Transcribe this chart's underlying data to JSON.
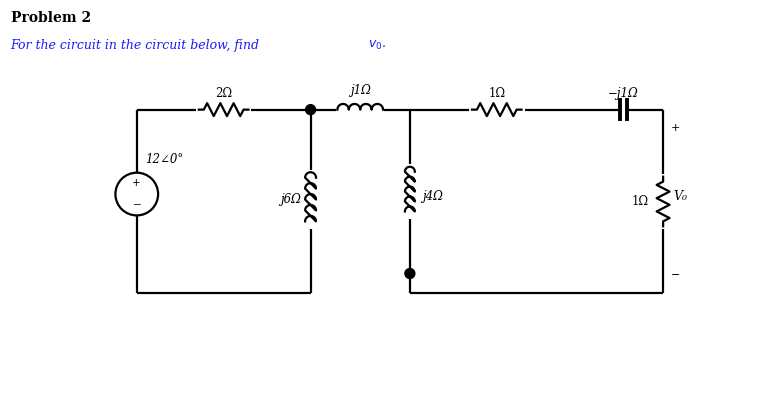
{
  "title": "Problem 2",
  "subtitle": "For the circuit in the circuit below, find $v_0$.",
  "title_color": "black",
  "subtitle_color": "#1a1aff",
  "bg_color": "white",
  "fig_width": 7.83,
  "fig_height": 4.04,
  "dpi": 100,
  "labels": {
    "source": "12∠0°",
    "R1": "2Ω",
    "L1": "j1Ω",
    "R2": "1Ω",
    "C1": "−j1Ω",
    "L2": "j6Ω",
    "L3": "j4Ω",
    "R3": "1Ω",
    "Vo": "V₀"
  }
}
